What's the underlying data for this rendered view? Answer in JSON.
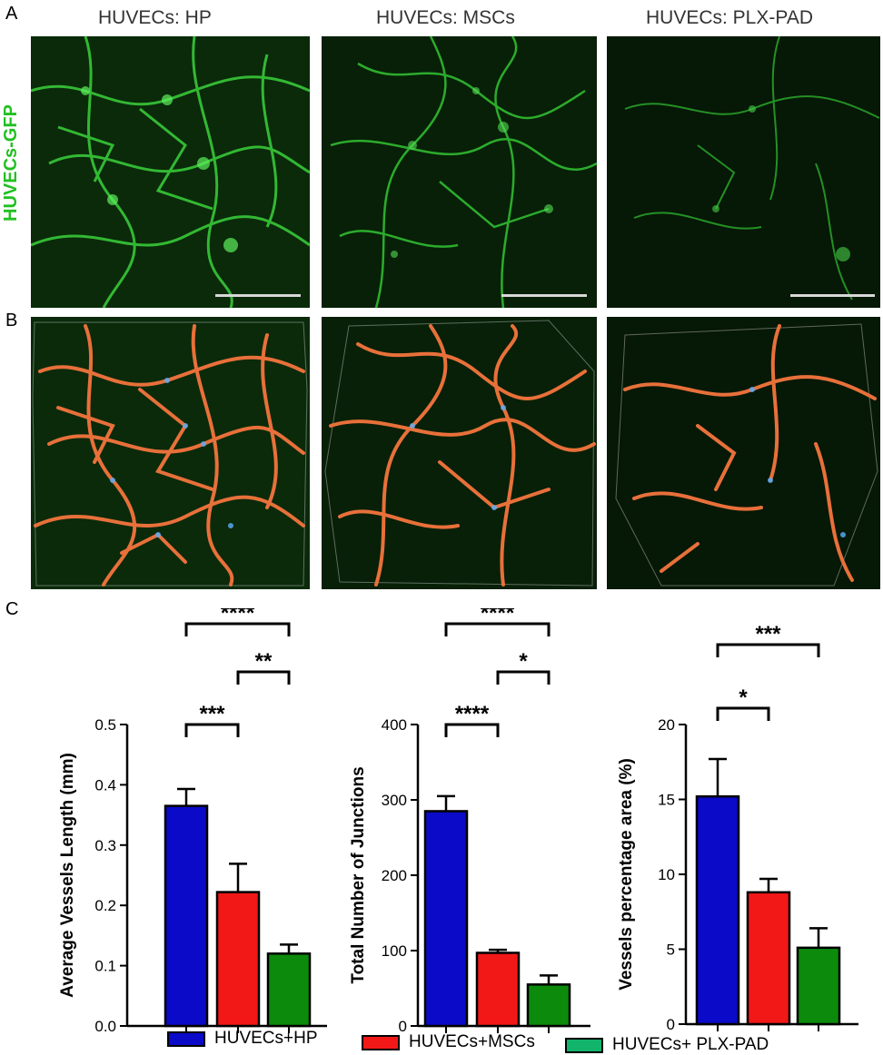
{
  "panels": {
    "a": "A",
    "b": "B",
    "c": "C"
  },
  "column_titles": [
    "HUVECs: HP",
    "HUVECs: MSCs",
    "HUVECs: PLX-PAD"
  ],
  "row_label": "HUVECs-GFP",
  "colors": {
    "hp": "#0a0ac8",
    "mscs": "#f21818",
    "plxpad": "#0c8a0c",
    "gfp": "#22c022",
    "vessel_overlay": "#e8703a"
  },
  "legend": [
    {
      "label": "HUVECs+HP",
      "color": "#0a0ac8"
    },
    {
      "label": "HUVECs+MSCs",
      "color": "#f21818"
    },
    {
      "label": "HUVECs+ PLX-PAD",
      "color": "#12b36a"
    }
  ],
  "chart_data": [
    {
      "type": "bar",
      "ylabel": "Average Vessels Length (mm)",
      "ylim": [
        0,
        0.5
      ],
      "ticks": [
        "0.0",
        "0.1",
        "0.2",
        "0.3",
        "0.4",
        "0.5"
      ],
      "categories": [
        "HUVECs+HP",
        "HUVECs+MSCs",
        "HUVECs+ PLX-PAD"
      ],
      "values": [
        0.365,
        0.222,
        0.12
      ],
      "errors": [
        0.028,
        0.047,
        0.015
      ],
      "significance": [
        {
          "from": 0,
          "to": 1,
          "label": "***"
        },
        {
          "from": 1,
          "to": 2,
          "label": "**"
        },
        {
          "from": 0,
          "to": 2,
          "label": "****"
        }
      ]
    },
    {
      "type": "bar",
      "ylabel": "Total Number of Junctions",
      "ylim": [
        0,
        400
      ],
      "ticks": [
        "0",
        "100",
        "200",
        "300",
        "400"
      ],
      "categories": [
        "HUVECs+HP",
        "HUVECs+MSCs",
        "HUVECs+ PLX-PAD"
      ],
      "values": [
        285,
        97,
        55
      ],
      "errors": [
        20,
        4,
        12
      ],
      "significance": [
        {
          "from": 0,
          "to": 1,
          "label": "****"
        },
        {
          "from": 1,
          "to": 2,
          "label": "*"
        },
        {
          "from": 0,
          "to": 2,
          "label": "****"
        }
      ]
    },
    {
      "type": "bar",
      "ylabel": "Vessels percentage area (%)",
      "ylim": [
        0,
        20
      ],
      "ticks": [
        "0",
        "5",
        "10",
        "15",
        "20"
      ],
      "categories": [
        "HUVECs+HP",
        "HUVECs+MSCs",
        "HUVECs+ PLX-PAD"
      ],
      "values": [
        15.2,
        8.8,
        5.1
      ],
      "errors": [
        2.5,
        0.9,
        1.3
      ],
      "significance": [
        {
          "from": 0,
          "to": 1,
          "label": "*"
        },
        {
          "from": 0,
          "to": 2,
          "label": "***"
        }
      ]
    }
  ]
}
